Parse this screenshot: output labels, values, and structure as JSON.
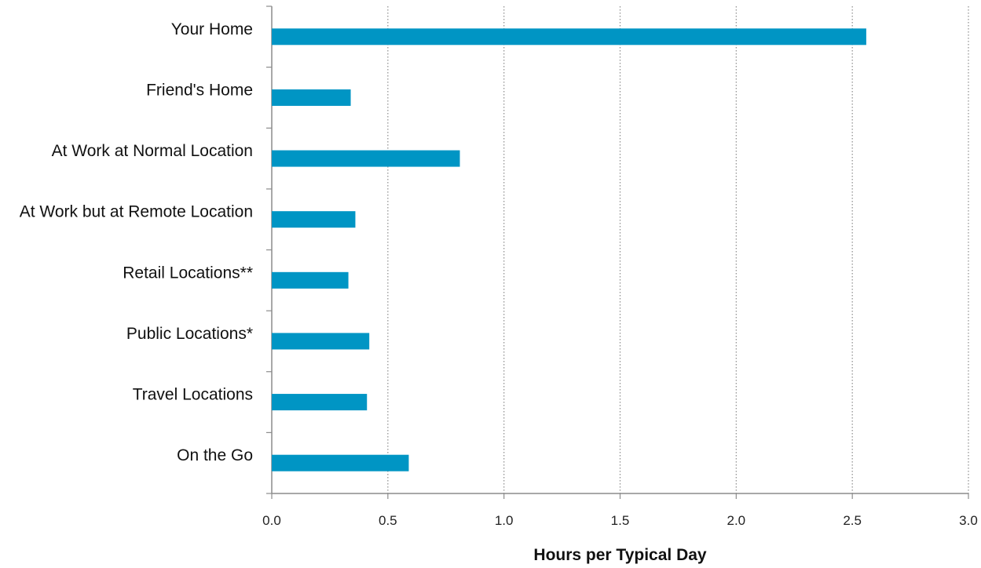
{
  "chart_data": {
    "type": "bar",
    "orientation": "horizontal",
    "categories": [
      "Your Home",
      "Friend's Home",
      "At Work at Normal Location",
      "At Work but at Remote Location",
      "Retail Locations**",
      "Public Locations*",
      "Travel Locations",
      "On the Go"
    ],
    "series": [
      {
        "values": [
          2.56,
          0.34,
          0.81,
          0.36,
          0.33,
          0.42,
          0.41,
          0.59
        ]
      }
    ],
    "title": "",
    "xlabel": "Hours per Typical Day",
    "ylabel": "",
    "xlim": [
      0.0,
      3.0
    ],
    "xticks": [
      "0.0",
      "0.5",
      "1.0",
      "1.5",
      "2.0",
      "2.5",
      "3.0"
    ],
    "grid": "vertical dotted",
    "legend": "none",
    "bar_color": "#0095c4"
  }
}
